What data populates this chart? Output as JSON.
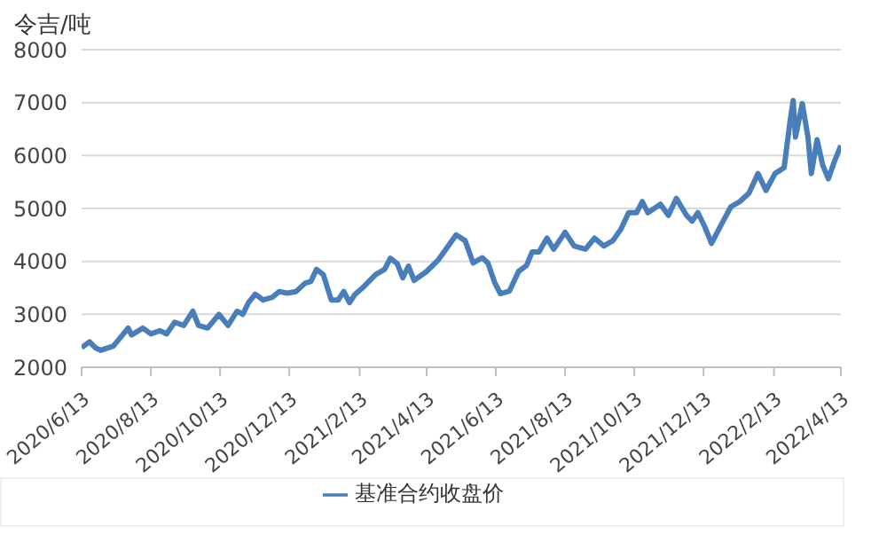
{
  "chart_data": {
    "type": "line",
    "ylabel": "令吉/吨",
    "legend": "bottom",
    "grid": "y",
    "marker": "none",
    "line_style": "solid",
    "xlim": [
      "2020-06-13",
      "2022-04-13"
    ],
    "xticks": [
      {
        "value": "2020-06-13",
        "label": "2020/6/13"
      },
      {
        "value": "2020-08-13",
        "label": "2020/8/13"
      },
      {
        "value": "2020-10-13",
        "label": "2020/10/13"
      },
      {
        "value": "2020-12-13",
        "label": "2020/12/13"
      },
      {
        "value": "2021-02-13",
        "label": "2021/2/13"
      },
      {
        "value": "2021-04-13",
        "label": "2021/4/13"
      },
      {
        "value": "2021-06-13",
        "label": "2021/6/13"
      },
      {
        "value": "2021-08-13",
        "label": "2021/8/13"
      },
      {
        "value": "2021-10-13",
        "label": "2021/10/13"
      },
      {
        "value": "2021-12-13",
        "label": "2021/12/13"
      },
      {
        "value": "2022-02-13",
        "label": "2022/2/13"
      },
      {
        "value": "2022-04-13",
        "label": "2022/4/13"
      }
    ],
    "ylim": [
      2000,
      8000
    ],
    "yticks": [
      2000,
      3000,
      4000,
      5000,
      6000,
      7000,
      8000
    ],
    "x": [
      "2020-06-13",
      "2020-06-20",
      "2020-06-25",
      "2020-06-30",
      "2020-07-11",
      "2020-07-16",
      "2020-07-24",
      "2020-07-27",
      "2020-08-06",
      "2020-08-13",
      "2020-08-21",
      "2020-08-27",
      "2020-09-03",
      "2020-09-11",
      "2020-09-19",
      "2020-09-24",
      "2020-10-02",
      "2020-10-12",
      "2020-10-20",
      "2020-10-28",
      "2020-11-02",
      "2020-11-07",
      "2020-11-13",
      "2020-11-20",
      "2020-11-28",
      "2020-12-04",
      "2020-12-11",
      "2020-12-19",
      "2020-12-27",
      "2021-01-01",
      "2021-01-06",
      "2021-01-12",
      "2021-01-19",
      "2021-01-25",
      "2021-01-30",
      "2021-02-04",
      "2021-02-09",
      "2021-02-17",
      "2021-02-27",
      "2021-03-07",
      "2021-03-12",
      "2021-03-18",
      "2021-03-23",
      "2021-03-28",
      "2021-04-02",
      "2021-04-13",
      "2021-04-23",
      "2021-05-09",
      "2021-05-17",
      "2021-05-24",
      "2021-06-01",
      "2021-06-06",
      "2021-06-12",
      "2021-06-17",
      "2021-06-25",
      "2021-07-03",
      "2021-07-10",
      "2021-07-15",
      "2021-07-21",
      "2021-07-28",
      "2021-08-03",
      "2021-08-13",
      "2021-08-21",
      "2021-08-31",
      "2021-09-08",
      "2021-09-16",
      "2021-09-24",
      "2021-10-01",
      "2021-10-08",
      "2021-10-15",
      "2021-10-20",
      "2021-10-25",
      "2021-11-05",
      "2021-11-12",
      "2021-11-19",
      "2021-11-28",
      "2021-12-03",
      "2021-12-08",
      "2021-12-14",
      "2021-12-20",
      "2021-12-29",
      "2022-01-06",
      "2022-01-14",
      "2022-01-22",
      "2022-01-30",
      "2022-02-06",
      "2022-02-14",
      "2022-02-22",
      "2022-02-27",
      "2022-03-02",
      "2022-03-04",
      "2022-03-10",
      "2022-03-15",
      "2022-03-18",
      "2022-03-23",
      "2022-03-28",
      "2022-04-02",
      "2022-04-07",
      "2022-04-13"
    ],
    "series": [
      {
        "name": "基准合约收盘价",
        "color": "#4a7ebb",
        "values": [
          2370,
          2480,
          2370,
          2320,
          2400,
          2530,
          2740,
          2610,
          2740,
          2630,
          2690,
          2630,
          2850,
          2790,
          3060,
          2790,
          2740,
          3000,
          2790,
          3060,
          3000,
          3220,
          3380,
          3270,
          3320,
          3430,
          3400,
          3430,
          3590,
          3620,
          3850,
          3750,
          3270,
          3270,
          3430,
          3220,
          3380,
          3530,
          3750,
          3850,
          4060,
          3960,
          3690,
          3910,
          3640,
          3810,
          4020,
          4500,
          4390,
          3970,
          4070,
          3970,
          3600,
          3390,
          3440,
          3810,
          3920,
          4180,
          4180,
          4440,
          4230,
          4550,
          4290,
          4230,
          4440,
          4290,
          4390,
          4600,
          4920,
          4920,
          5130,
          4920,
          5080,
          4870,
          5190,
          4870,
          4760,
          4920,
          4660,
          4340,
          4710,
          5030,
          5130,
          5290,
          5660,
          5340,
          5660,
          5770,
          6610,
          7040,
          6350,
          6980,
          6350,
          5660,
          6300,
          5820,
          5560,
          5870,
          6190
        ]
      }
    ]
  }
}
